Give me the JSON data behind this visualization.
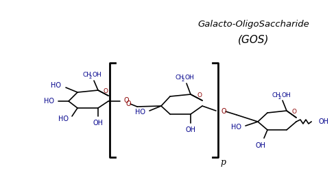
{
  "title_line1": "Galacto-OligoSaccharide",
  "title_line2": "(GOS)",
  "title_color": "#000000",
  "label_color": "#00008B",
  "bond_color": "#000000",
  "oxygen_color": "#8B0000",
  "background": "#ffffff",
  "bracket_color": "#000000",
  "subscript_p": "p"
}
